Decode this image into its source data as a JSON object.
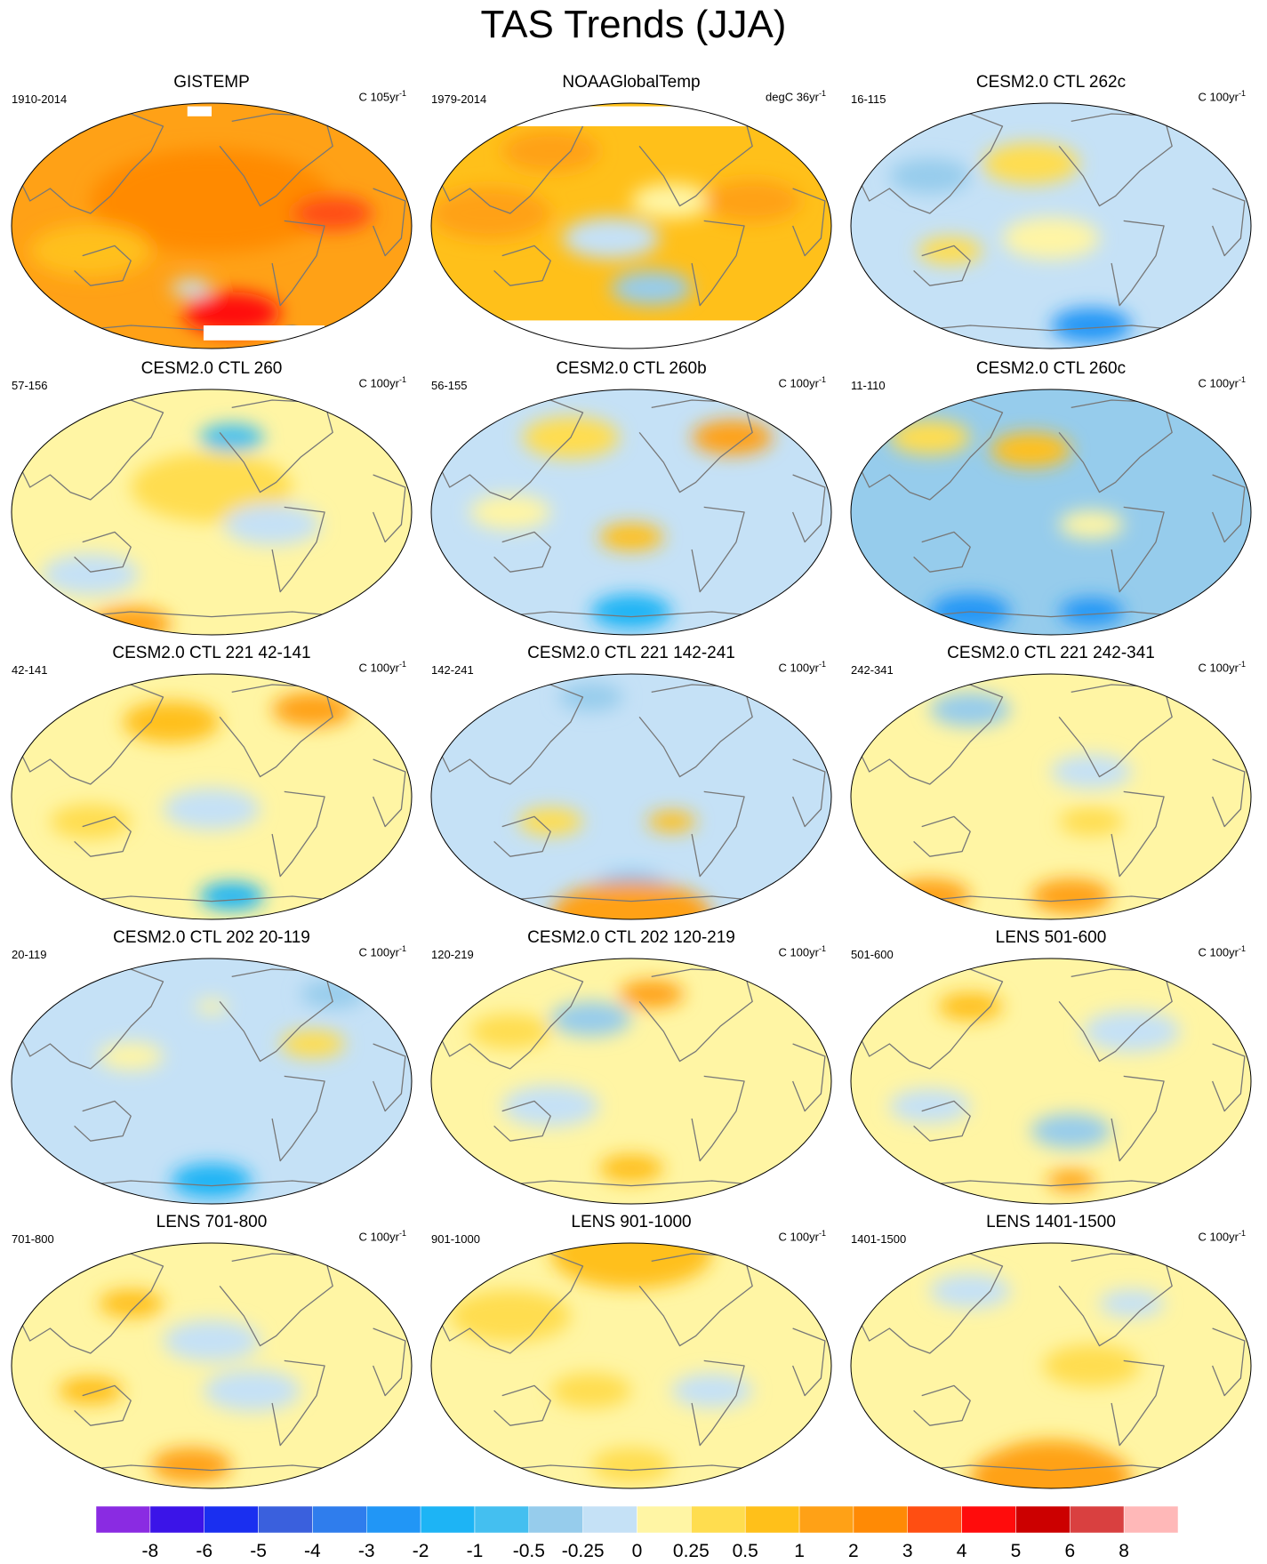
{
  "title": "TAS Trends (JJA)",
  "colors": {
    "bins": [
      "#8a2be2",
      "#3b14e8",
      "#1a2ff0",
      "#3a60dd",
      "#2f7ded",
      "#2196f6",
      "#1db4f5",
      "#44bff0",
      "#96ccec",
      "#c5e1f6",
      "#fff5a4",
      "#ffdd4f",
      "#ffc01a",
      "#ffa116",
      "#ff8a05",
      "#ff4e12",
      "#ff0c0c",
      "#cc0000",
      "#d94040",
      "#ffb8b8"
    ],
    "coast": "#777777",
    "missing": "#ffffff"
  },
  "colorbar": {
    "labels": [
      "-8",
      "-6",
      "-5",
      "-4",
      "-3",
      "-2",
      "-1",
      "-0.5",
      "-0.25",
      "0",
      "0.25",
      "0.5",
      "1",
      "2",
      "3",
      "4",
      "5",
      "6",
      "8"
    ]
  },
  "panels": [
    {
      "title": "GISTEMP",
      "period": "1910-2014",
      "units": "C 105yr",
      "units_sup": "-1",
      "base": 13,
      "blobs": [
        [
          0.5,
          0.4,
          0.3,
          14
        ],
        [
          0.8,
          0.45,
          0.1,
          15
        ],
        [
          0.55,
          0.85,
          0.12,
          16
        ],
        [
          0.45,
          0.75,
          0.05,
          9
        ],
        [
          0.2,
          0.6,
          0.15,
          12
        ]
      ],
      "missing": [
        [
          0.44,
          0.02,
          0.06,
          0.04
        ],
        [
          0.48,
          0.9,
          0.3,
          0.06
        ]
      ]
    },
    {
      "title": "NOAAGlobalTemp",
      "period": "1979-2014",
      "units": "degC 36yr",
      "units_sup": "-1",
      "base": 12,
      "blobs": [
        [
          0.45,
          0.55,
          0.12,
          9
        ],
        [
          0.6,
          0.4,
          0.1,
          10
        ],
        [
          0.15,
          0.45,
          0.15,
          13
        ],
        [
          0.8,
          0.4,
          0.12,
          13
        ],
        [
          0.3,
          0.2,
          0.12,
          13
        ],
        [
          0.55,
          0.75,
          0.1,
          8
        ]
      ],
      "missing": [
        [
          0.18,
          0.02,
          0.64,
          0.08
        ],
        [
          0.15,
          0.88,
          0.7,
          0.14
        ]
      ]
    },
    {
      "title": "CESM2.0 CTL 262c",
      "period": "16-115",
      "units": "C 100yr",
      "units_sup": "-1",
      "base": 9,
      "blobs": [
        [
          0.45,
          0.25,
          0.12,
          11
        ],
        [
          0.5,
          0.55,
          0.12,
          10
        ],
        [
          0.2,
          0.3,
          0.1,
          8
        ],
        [
          0.6,
          0.9,
          0.1,
          5
        ],
        [
          0.25,
          0.6,
          0.08,
          11
        ]
      ],
      "missing": []
    },
    {
      "title": "CESM2.0 CTL 260",
      "period": "57-156",
      "units": "C 100yr",
      "units_sup": "-1",
      "base": 10,
      "blobs": [
        [
          0.5,
          0.4,
          0.2,
          11
        ],
        [
          0.2,
          0.75,
          0.12,
          9
        ],
        [
          0.65,
          0.55,
          0.12,
          9
        ],
        [
          0.55,
          0.2,
          0.08,
          7
        ],
        [
          0.3,
          0.95,
          0.1,
          13
        ]
      ],
      "missing": []
    },
    {
      "title": "CESM2.0 CTL 260b",
      "period": "56-155",
      "units": "C 100yr",
      "units_sup": "-1",
      "base": 9,
      "blobs": [
        [
          0.5,
          0.6,
          0.08,
          12
        ],
        [
          0.35,
          0.2,
          0.12,
          11
        ],
        [
          0.75,
          0.2,
          0.1,
          13
        ],
        [
          0.2,
          0.5,
          0.1,
          10
        ],
        [
          0.5,
          0.9,
          0.1,
          6
        ]
      ],
      "missing": []
    },
    {
      "title": "CESM2.0 CTL 260c",
      "period": "11-110",
      "units": "C 100yr",
      "units_sup": "-1",
      "base": 8,
      "blobs": [
        [
          0.45,
          0.25,
          0.1,
          12
        ],
        [
          0.2,
          0.2,
          0.1,
          11
        ],
        [
          0.3,
          0.9,
          0.1,
          5
        ],
        [
          0.6,
          0.9,
          0.08,
          5
        ],
        [
          0.6,
          0.55,
          0.08,
          10
        ]
      ],
      "missing": []
    },
    {
      "title": "CESM2.0 CTL 221 42-141",
      "period": "42-141",
      "units": "C 100yr",
      "units_sup": "-1",
      "base": 10,
      "blobs": [
        [
          0.4,
          0.2,
          0.12,
          12
        ],
        [
          0.75,
          0.15,
          0.1,
          13
        ],
        [
          0.5,
          0.55,
          0.12,
          9
        ],
        [
          0.55,
          0.9,
          0.08,
          6
        ],
        [
          0.2,
          0.6,
          0.1,
          11
        ]
      ],
      "missing": []
    },
    {
      "title": "CESM2.0 CTL 221 142-241",
      "period": "142-241",
      "units": "C 100yr",
      "units_sup": "-1",
      "base": 9,
      "blobs": [
        [
          0.6,
          0.6,
          0.06,
          12
        ],
        [
          0.3,
          0.6,
          0.08,
          11
        ],
        [
          0.5,
          0.88,
          0.1,
          6
        ],
        [
          0.5,
          0.98,
          0.2,
          13
        ],
        [
          0.4,
          0.1,
          0.08,
          8
        ]
      ],
      "missing": []
    },
    {
      "title": "CESM2.0 CTL 221 242-341",
      "period": "242-341",
      "units": "C 100yr",
      "units_sup": "-1",
      "base": 10,
      "blobs": [
        [
          0.2,
          0.9,
          0.1,
          13
        ],
        [
          0.55,
          0.9,
          0.1,
          13
        ],
        [
          0.3,
          0.15,
          0.1,
          8
        ],
        [
          0.6,
          0.4,
          0.1,
          9
        ],
        [
          0.6,
          0.6,
          0.08,
          11
        ]
      ],
      "missing": []
    },
    {
      "title": "CESM2.0 CTL 202 20-119",
      "period": "20-119",
      "units": "C 100yr",
      "units_sup": "-1",
      "base": 9,
      "blobs": [
        [
          0.5,
          0.9,
          0.1,
          6
        ],
        [
          0.8,
          0.15,
          0.08,
          8
        ],
        [
          0.3,
          0.4,
          0.08,
          10
        ],
        [
          0.75,
          0.35,
          0.08,
          11
        ],
        [
          0.5,
          0.2,
          0.04,
          10
        ]
      ],
      "missing": []
    },
    {
      "title": "CESM2.0 CTL 202 120-219",
      "period": "120-219",
      "units": "C 100yr",
      "units_sup": "-1",
      "base": 10,
      "blobs": [
        [
          0.55,
          0.15,
          0.08,
          13
        ],
        [
          0.4,
          0.25,
          0.1,
          8
        ],
        [
          0.2,
          0.3,
          0.1,
          11
        ],
        [
          0.5,
          0.85,
          0.08,
          12
        ],
        [
          0.3,
          0.6,
          0.12,
          9
        ]
      ],
      "missing": []
    },
    {
      "title": "LENS 501-600",
      "period": "501-600",
      "units": "C 100yr",
      "units_sup": "-1",
      "base": 10,
      "blobs": [
        [
          0.55,
          0.7,
          0.1,
          8
        ],
        [
          0.55,
          0.9,
          0.06,
          13
        ],
        [
          0.3,
          0.2,
          0.08,
          12
        ],
        [
          0.2,
          0.6,
          0.1,
          9
        ],
        [
          0.7,
          0.3,
          0.12,
          9
        ]
      ],
      "missing": []
    },
    {
      "title": "LENS 701-800",
      "period": "701-800",
      "units": "C 100yr",
      "units_sup": "-1",
      "base": 10,
      "blobs": [
        [
          0.45,
          0.9,
          0.1,
          13
        ],
        [
          0.3,
          0.25,
          0.08,
          12
        ],
        [
          0.2,
          0.6,
          0.08,
          12
        ],
        [
          0.6,
          0.6,
          0.12,
          9
        ],
        [
          0.5,
          0.4,
          0.12,
          9
        ]
      ],
      "missing": []
    },
    {
      "title": "LENS 901-1000",
      "period": "901-1000",
      "units": "C 100yr",
      "units_sup": "-1",
      "base": 10,
      "blobs": [
        [
          0.5,
          0.05,
          0.2,
          12
        ],
        [
          0.2,
          0.3,
          0.15,
          11
        ],
        [
          0.7,
          0.6,
          0.1,
          9
        ],
        [
          0.5,
          0.9,
          0.1,
          11
        ],
        [
          0.4,
          0.6,
          0.1,
          11
        ]
      ],
      "missing": []
    },
    {
      "title": "LENS 1401-1500",
      "period": "1401-1500",
      "units": "C 100yr",
      "units_sup": "-1",
      "base": 10,
      "blobs": [
        [
          0.5,
          0.9,
          0.15,
          12
        ],
        [
          0.5,
          0.95,
          0.2,
          13
        ],
        [
          0.3,
          0.2,
          0.1,
          9
        ],
        [
          0.6,
          0.5,
          0.12,
          11
        ],
        [
          0.7,
          0.25,
          0.08,
          9
        ]
      ],
      "missing": []
    }
  ]
}
